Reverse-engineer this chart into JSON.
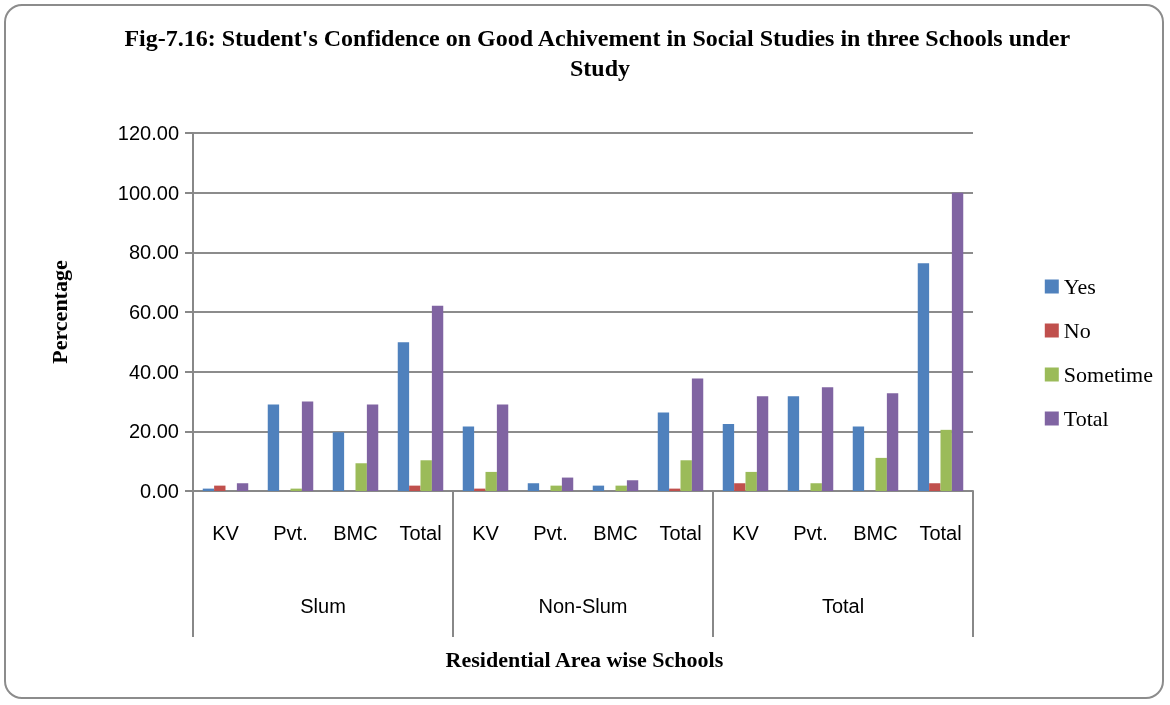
{
  "chart_data": {
    "type": "bar",
    "title": "Fig-7.16: Student's Confidence on Good Achivement in Social Studies in three Schools under Study",
    "xlabel": "Residential Area wise Schools",
    "ylabel": "Percentage",
    "categories": [
      "KV",
      "Pvt.",
      "BMC",
      "Total",
      "KV",
      "Pvt.",
      "BMC",
      "Total",
      "KV",
      "Pvt.",
      "BMC",
      "Total"
    ],
    "annotations": [
      "Slum",
      "Non-Slum",
      "Total"
    ],
    "series": [
      {
        "name": "Yes",
        "color": "#4f81bd",
        "values": [
          0.8,
          29.0,
          19.7,
          49.9,
          21.6,
          2.6,
          1.8,
          26.3,
          22.5,
          31.8,
          21.6,
          76.3
        ]
      },
      {
        "name": "No",
        "color": "#c0504d",
        "values": [
          1.8,
          0,
          0,
          1.8,
          0.8,
          0,
          0,
          0.8,
          2.6,
          0,
          0,
          2.6
        ]
      },
      {
        "name": "Sometime",
        "color": "#9bbb59",
        "values": [
          0,
          0.8,
          9.3,
          10.3,
          6.4,
          1.8,
          1.8,
          10.3,
          6.4,
          2.6,
          11.1,
          20.5
        ]
      },
      {
        "name": "Total",
        "color": "#8064a2",
        "values": [
          2.6,
          30.0,
          29.0,
          62.1,
          29.0,
          4.5,
          3.6,
          37.7,
          31.8,
          34.8,
          32.8,
          100
        ]
      }
    ],
    "ylim": [
      0,
      120
    ],
    "yticks": [
      {
        "value": 0,
        "label": "0.00"
      },
      {
        "value": 20,
        "label": "20.00"
      },
      {
        "value": 40,
        "label": "40.00"
      },
      {
        "value": 60,
        "label": "60.00"
      },
      {
        "value": 80,
        "label": "80.00"
      },
      {
        "value": 100,
        "label": "100.00"
      },
      {
        "value": 120,
        "label": "120.00"
      }
    ],
    "grid": "y",
    "legend": "right"
  }
}
